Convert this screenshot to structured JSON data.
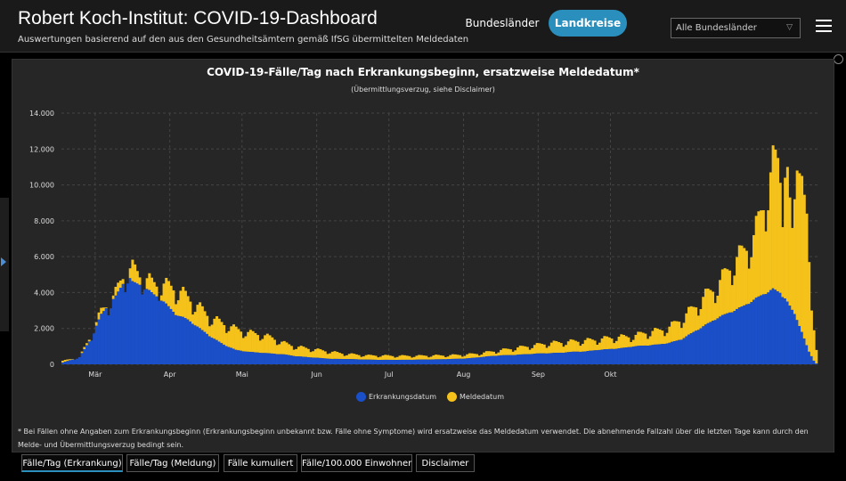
{
  "header": {
    "title": "Robert Koch-Institut: COVID-19-Dashboard",
    "subtitle": "Auswertungen basierend auf den aus den Gesundheitsämtern gemäß IfSG übermittelten Meldedaten",
    "tabs": [
      {
        "label": "Bundesländer",
        "active": false
      },
      {
        "label": "Landkreise",
        "active": true
      }
    ],
    "region_select": {
      "value": "Alle Bundesländer"
    }
  },
  "chart_data": {
    "type": "bar",
    "stacked": true,
    "title": "COVID-19-Fälle/Tag nach Erkrankungsbeginn, ersatzweise Meldedatum*",
    "subtitle": "(Übermittlungsverzug, siehe Disclaimer)",
    "xlabel": "",
    "ylabel": "",
    "ylim": [
      0,
      14000
    ],
    "yticks": [
      "0",
      "2.000",
      "4.000",
      "6.000",
      "8.000",
      "10.000",
      "12.000",
      "14.000"
    ],
    "grid": true,
    "legend_position": "bottom",
    "month_ticks": [
      "Mär",
      "Apr",
      "Mai",
      "Jun",
      "Jul",
      "Aug",
      "Sep",
      "Okt"
    ],
    "anchors": {
      "erkrankungsdatum": [
        [
          0,
          100
        ],
        [
          7,
          400
        ],
        [
          12,
          1500
        ],
        [
          16,
          2800
        ],
        [
          22,
          3800
        ],
        [
          25,
          4500
        ],
        [
          27,
          5000
        ],
        [
          29,
          4600
        ],
        [
          33,
          4400
        ],
        [
          37,
          4000
        ],
        [
          42,
          3500
        ],
        [
          47,
          2800
        ],
        [
          52,
          2500
        ],
        [
          57,
          2000
        ],
        [
          62,
          1500
        ],
        [
          67,
          1100
        ],
        [
          72,
          800
        ],
        [
          77,
          700
        ],
        [
          82,
          650
        ],
        [
          87,
          600
        ],
        [
          92,
          550
        ],
        [
          97,
          450
        ],
        [
          102,
          400
        ],
        [
          107,
          350
        ],
        [
          112,
          300
        ],
        [
          117,
          300
        ],
        [
          122,
          280
        ],
        [
          127,
          260
        ],
        [
          132,
          250
        ],
        [
          137,
          250
        ],
        [
          142,
          250
        ],
        [
          147,
          260
        ],
        [
          152,
          270
        ],
        [
          157,
          280
        ],
        [
          162,
          300
        ],
        [
          167,
          320
        ],
        [
          172,
          380
        ],
        [
          177,
          450
        ],
        [
          182,
          500
        ],
        [
          187,
          520
        ],
        [
          192,
          560
        ],
        [
          197,
          600
        ],
        [
          202,
          620
        ],
        [
          207,
          650
        ],
        [
          212,
          700
        ],
        [
          217,
          720
        ],
        [
          222,
          800
        ],
        [
          227,
          850
        ],
        [
          232,
          900
        ],
        [
          237,
          1000
        ],
        [
          242,
          1050
        ],
        [
          247,
          1100
        ],
        [
          252,
          1200
        ],
        [
          257,
          1400
        ],
        [
          262,
          1800
        ],
        [
          267,
          2200
        ],
        [
          272,
          2600
        ],
        [
          277,
          2900
        ],
        [
          282,
          3200
        ],
        [
          287,
          3600
        ],
        [
          292,
          4000
        ],
        [
          295,
          4200
        ],
        [
          298,
          4000
        ],
        [
          301,
          3500
        ],
        [
          304,
          2800
        ],
        [
          307,
          1800
        ],
        [
          310,
          700
        ],
        [
          312,
          200
        ],
        [
          313,
          50
        ]
      ],
      "meldedatum": [
        [
          0,
          200
        ],
        [
          7,
          400
        ],
        [
          12,
          1700
        ],
        [
          16,
          3000
        ],
        [
          22,
          4000
        ],
        [
          25,
          5000
        ],
        [
          27,
          5300
        ],
        [
          29,
          5400
        ],
        [
          33,
          5000
        ],
        [
          37,
          4600
        ],
        [
          42,
          4500
        ],
        [
          47,
          4300
        ],
        [
          52,
          3800
        ],
        [
          57,
          3200
        ],
        [
          62,
          2600
        ],
        [
          67,
          2300
        ],
        [
          72,
          2000
        ],
        [
          77,
          1800
        ],
        [
          82,
          1700
        ],
        [
          87,
          1500
        ],
        [
          92,
          1200
        ],
        [
          97,
          1000
        ],
        [
          102,
          900
        ],
        [
          107,
          800
        ],
        [
          112,
          700
        ],
        [
          117,
          600
        ],
        [
          122,
          550
        ],
        [
          127,
          500
        ],
        [
          132,
          500
        ],
        [
          137,
          480
        ],
        [
          142,
          480
        ],
        [
          147,
          480
        ],
        [
          152,
          500
        ],
        [
          157,
          500
        ],
        [
          162,
          520
        ],
        [
          167,
          550
        ],
        [
          172,
          600
        ],
        [
          177,
          700
        ],
        [
          182,
          800
        ],
        [
          187,
          900
        ],
        [
          192,
          1000
        ],
        [
          197,
          1100
        ],
        [
          202,
          1200
        ],
        [
          207,
          1250
        ],
        [
          212,
          1300
        ],
        [
          217,
          1350
        ],
        [
          222,
          1400
        ],
        [
          227,
          1500
        ],
        [
          232,
          1550
        ],
        [
          237,
          1600
        ],
        [
          242,
          1800
        ],
        [
          247,
          1900
        ],
        [
          252,
          2100
        ],
        [
          257,
          2600
        ],
        [
          262,
          3200
        ],
        [
          267,
          3900
        ],
        [
          272,
          4500
        ],
        [
          277,
          5500
        ],
        [
          282,
          6300
        ],
        [
          287,
          7200
        ],
        [
          292,
          9500
        ],
        [
          295,
          11300
        ],
        [
          297,
          11500
        ],
        [
          299,
          9800
        ],
        [
          301,
          11000
        ],
        [
          303,
          7600
        ],
        [
          305,
          10800
        ],
        [
          307,
          10500
        ],
        [
          309,
          8400
        ],
        [
          311,
          3000
        ],
        [
          313,
          800
        ]
      ]
    },
    "series": [
      {
        "name": "Erkrankungsdatum",
        "color": "#1a4fc8"
      },
      {
        "name": "Meldedatum",
        "color": "#f5c21b"
      }
    ]
  },
  "footnote": "* Bei Fällen ohne Angaben zum Erkrankungsbeginn (Erkrankungsbeginn unbekannt bzw. Fälle ohne Symptome) wird ersatzweise das Meldedatum verwendet. Die abnehmende Fallzahl über die letzten Tage kann durch den Melde- und Übermittlungsverzug bedingt sein.",
  "bottom_tabs": [
    {
      "label": "Fälle/Tag (Erkrankung)",
      "active": true
    },
    {
      "label": "Fälle/Tag (Meldung)",
      "active": false
    },
    {
      "label": "Fälle kumuliert",
      "active": false
    },
    {
      "label": "Fälle/100.000 Einwohner",
      "active": false
    },
    {
      "label": "Disclaimer",
      "active": false
    }
  ],
  "colors": {
    "accent": "#2a8fbd",
    "panel": "#262626"
  }
}
